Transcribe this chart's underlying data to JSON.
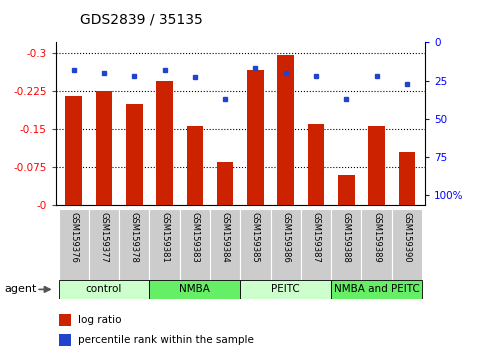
{
  "title": "GDS2839 / 35135",
  "samples": [
    "GSM159376",
    "GSM159377",
    "GSM159378",
    "GSM159381",
    "GSM159383",
    "GSM159384",
    "GSM159385",
    "GSM159386",
    "GSM159387",
    "GSM159388",
    "GSM159389",
    "GSM159390"
  ],
  "log_ratio": [
    -0.215,
    -0.225,
    -0.2,
    -0.245,
    -0.155,
    -0.085,
    -0.265,
    -0.295,
    -0.16,
    -0.06,
    -0.155,
    -0.105
  ],
  "percentile": [
    18,
    20,
    22,
    18,
    23,
    37,
    17,
    20,
    22,
    37,
    22,
    27
  ],
  "groups": [
    {
      "label": "control",
      "start": 0,
      "end": 3,
      "color": "#ccffcc"
    },
    {
      "label": "NMBA",
      "start": 3,
      "end": 6,
      "color": "#66ee66"
    },
    {
      "label": "PEITC",
      "start": 6,
      "end": 9,
      "color": "#ccffcc"
    },
    {
      "label": "NMBA and PEITC",
      "start": 9,
      "end": 12,
      "color": "#66ee66"
    }
  ],
  "ylim_left": [
    0.0,
    -0.32
  ],
  "yticks_left": [
    0.0,
    -0.075,
    -0.15,
    -0.225,
    -0.3
  ],
  "ytick_labels_left": [
    "-0",
    "-0.075",
    "-0.15",
    "-0.225",
    "-0.3"
  ],
  "ylim_right": [
    107,
    0
  ],
  "yticks_right": [
    100,
    75,
    50,
    25,
    0
  ],
  "ytick_labels_right": [
    "100%",
    "75",
    "50",
    "25",
    "0"
  ],
  "bar_color": "#cc2200",
  "dot_color": "#2244cc",
  "legend_log": "log ratio",
  "legend_pct": "percentile rank within the sample",
  "bar_width": 0.55
}
